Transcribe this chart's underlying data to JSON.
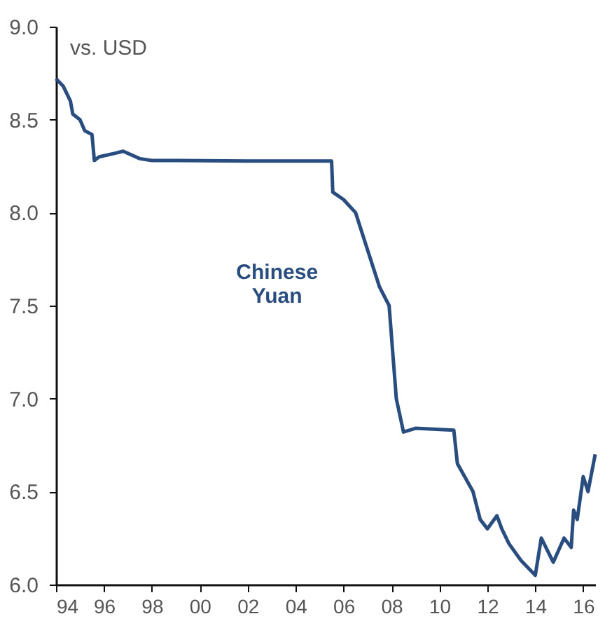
{
  "chart_data": {
    "type": "line",
    "x": [
      1994.0,
      1994.3,
      1994.6,
      1994.7,
      1995.0,
      1995.2,
      1995.5,
      1995.6,
      1995.8,
      1996.5,
      1996.8,
      1997.5,
      1998.0,
      1999.0,
      2002.0,
      2005.5,
      2005.55,
      2006.0,
      2006.5,
      2007.0,
      2007.5,
      2007.9,
      2008.2,
      2008.5,
      2009.0,
      2010.6,
      2010.75,
      2011.4,
      2011.7,
      2012.0,
      2012.4,
      2012.6,
      2012.9,
      2013.4,
      2014.0,
      2014.25,
      2014.75,
      2015.2,
      2015.5,
      2015.6,
      2015.75,
      2016.0,
      2016.2,
      2016.5
    ],
    "series": [
      {
        "name": "Chinese Yuan",
        "color": "#2a4d7f",
        "values": [
          8.72,
          8.68,
          8.6,
          8.53,
          8.5,
          8.44,
          8.42,
          8.28,
          8.3,
          8.32,
          8.33,
          8.29,
          8.28,
          8.28,
          8.277,
          8.277,
          8.11,
          8.07,
          8.0,
          7.8,
          7.6,
          7.5,
          7.0,
          6.82,
          6.84,
          6.83,
          6.65,
          6.5,
          6.35,
          6.3,
          6.37,
          6.3,
          6.22,
          6.13,
          6.05,
          6.25,
          6.12,
          6.25,
          6.2,
          6.4,
          6.35,
          6.58,
          6.5,
          6.7
        ]
      }
    ],
    "xlim": [
      1994,
      2016.5
    ],
    "xticks": [
      {
        "value": 1994,
        "label": "94"
      },
      {
        "value": 1996,
        "label": "96"
      },
      {
        "value": 1998,
        "label": "98"
      },
      {
        "value": 2000,
        "label": "00"
      },
      {
        "value": 2002,
        "label": "02"
      },
      {
        "value": 2004,
        "label": "04"
      },
      {
        "value": 2006,
        "label": "06"
      },
      {
        "value": 2008,
        "label": "08"
      },
      {
        "value": 2010,
        "label": "10"
      },
      {
        "value": 2012,
        "label": "12"
      },
      {
        "value": 2014,
        "label": "14"
      },
      {
        "value": 2016,
        "label": "16"
      }
    ],
    "ylim": [
      6.0,
      9.0
    ],
    "yticks": [
      {
        "value": 6.0,
        "label": "6.0"
      },
      {
        "value": 6.5,
        "label": "6.5"
      },
      {
        "value": 7.0,
        "label": "7.0"
      },
      {
        "value": 7.5,
        "label": "7.5"
      },
      {
        "value": 8.0,
        "label": "8.0"
      },
      {
        "value": 8.5,
        "label": "8.5"
      },
      {
        "value": 9.0,
        "label": "9.0"
      }
    ],
    "annotations": [
      "vs. USD"
    ],
    "grid": false,
    "marker": "none",
    "line_style": "solid"
  }
}
